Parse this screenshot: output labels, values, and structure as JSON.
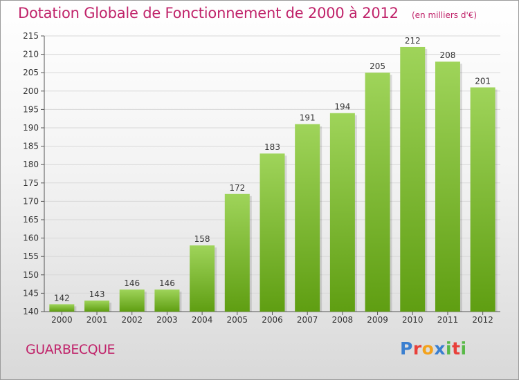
{
  "title": "Dotation Globale de Fonctionnement de 2000 à 2012",
  "subtitle": "(en milliers d'€)",
  "commune": "GUARBECQUE",
  "logo": {
    "text": "Proxiti",
    "letters": [
      "P",
      "r",
      "o",
      "x",
      "i",
      "t",
      "i"
    ]
  },
  "colors": {
    "title": "#c0236a",
    "bar_top": "#9fd45a",
    "bar_bottom": "#5f9e12",
    "grid": "#d8d8d8"
  },
  "chart_data": {
    "type": "bar",
    "categories": [
      "2000",
      "2001",
      "2002",
      "2003",
      "2004",
      "2005",
      "2006",
      "2007",
      "2008",
      "2009",
      "2010",
      "2011",
      "2012"
    ],
    "values": [
      142,
      143,
      146,
      146,
      158,
      172,
      183,
      191,
      194,
      205,
      212,
      208,
      201
    ],
    "data_labels": [
      "142",
      "143",
      "146",
      "146",
      "158",
      "172",
      "183",
      "191",
      "194",
      "205",
      "212",
      "208",
      "201"
    ],
    "ylim": [
      140,
      215
    ],
    "yticks": [
      140,
      145,
      150,
      155,
      160,
      165,
      170,
      175,
      180,
      185,
      190,
      195,
      200,
      205,
      210,
      215
    ],
    "title": "Dotation Globale de Fonctionnement de 2000 à 2012",
    "xlabel": "",
    "ylabel": "",
    "grid": true
  }
}
